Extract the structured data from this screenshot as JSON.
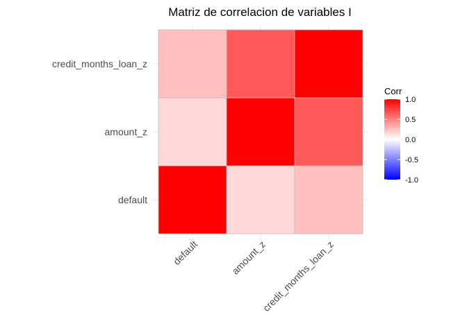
{
  "chart_data": {
    "type": "heatmap",
    "title": "Matriz de correlacion de variables I",
    "x_categories": [
      "default",
      "amount_z",
      "credit_months_loan_z"
    ],
    "y_categories": [
      "default",
      "amount_z",
      "credit_months_loan_z"
    ],
    "values": [
      [
        1.0,
        0.15,
        0.25
      ],
      [
        0.15,
        1.0,
        0.65
      ],
      [
        0.25,
        0.65,
        1.0
      ]
    ],
    "legend": {
      "title": "Corr",
      "ticks": [
        "1.0",
        "0.5",
        "0.0",
        "-0.5",
        "-1.0"
      ],
      "tick_values": [
        1.0,
        0.5,
        0.0,
        -0.5,
        -1.0
      ],
      "range": [
        -1,
        1
      ]
    },
    "colors": {
      "low": "#0000ff",
      "mid": "#ffffff",
      "high": "#ff0000"
    },
    "grid": true,
    "legend_placement": "right"
  }
}
